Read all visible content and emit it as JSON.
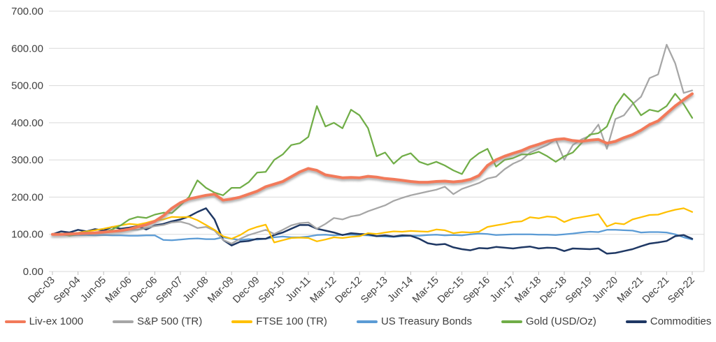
{
  "chart_data": {
    "type": "line",
    "title": "",
    "xlabel": "",
    "ylabel": "",
    "x_frequency": "quarterly",
    "points_per_label": 3,
    "x_tick_labels": [
      "Dec-03",
      "Sep-04",
      "Jun-05",
      "Mar-06",
      "Dec-06",
      "Sep-07",
      "Jun-08",
      "Mar-09",
      "Dec-09",
      "Sep-10",
      "Jun-11",
      "Mar-12",
      "Dec-12",
      "Sep-13",
      "Jun-14",
      "Mar-15",
      "Dec-15",
      "Sep-16",
      "Jun-17",
      "Mar-18",
      "Dec-18",
      "Sep-19",
      "Jun-20",
      "Mar-21",
      "Dec-21",
      "Sep-22"
    ],
    "ylim": [
      0,
      700
    ],
    "y_tick_labels": [
      "0.00",
      "100.00",
      "200.00",
      "300.00",
      "400.00",
      "500.00",
      "600.00",
      "700.00"
    ],
    "grid": "horizontal",
    "grid_color": "#D9D9D9",
    "axis_text_color": "#404040",
    "legend_position": "bottom",
    "series": [
      {
        "name": "Liv-ex 1000",
        "color": "#F27A5A",
        "width": 4,
        "shadow": true,
        "values": [
          100,
          100,
          101,
          102,
          103,
          104,
          106,
          108,
          110,
          114,
          120,
          126,
          135,
          150,
          170,
          185,
          195,
          200,
          205,
          208,
          192,
          195,
          200,
          208,
          216,
          228,
          235,
          242,
          255,
          268,
          277,
          272,
          260,
          256,
          252,
          253,
          252,
          256,
          254,
          250,
          248,
          245,
          242,
          240,
          240,
          242,
          243,
          241,
          243,
          248,
          258,
          285,
          300,
          310,
          318,
          325,
          335,
          342,
          350,
          355,
          357,
          352,
          350,
          353,
          355,
          345,
          350,
          360,
          368,
          380,
          395,
          405,
          425,
          445,
          462,
          478
        ]
      },
      {
        "name": "S&P 500 (TR)",
        "color": "#A6A6A6",
        "width": 2.25,
        "shadow": false,
        "values": [
          100,
          101,
          100,
          99,
          104,
          102,
          104,
          107,
          108,
          112,
          112,
          117,
          122,
          125,
          132,
          134,
          128,
          117,
          120,
          110,
          85,
          75,
          88,
          98,
          105,
          112,
          101,
          112,
          124,
          130,
          132,
          115,
          128,
          144,
          140,
          148,
          152,
          162,
          170,
          178,
          190,
          198,
          205,
          210,
          215,
          220,
          228,
          208,
          222,
          230,
          238,
          250,
          255,
          275,
          290,
          300,
          320,
          330,
          340,
          355,
          300,
          340,
          355,
          365,
          395,
          330,
          410,
          420,
          450,
          470,
          520,
          530,
          610,
          560,
          480,
          487
        ]
      },
      {
        "name": "FTSE 100 (TR)",
        "color": "#FFC000",
        "width": 2.25,
        "shadow": false,
        "values": [
          100,
          101,
          102,
          104,
          108,
          111,
          115,
          120,
          124,
          128,
          126,
          131,
          137,
          140,
          147,
          146,
          147,
          138,
          125,
          112,
          95,
          88,
          98,
          112,
          120,
          126,
          78,
          84,
          90,
          91,
          90,
          81,
          86,
          92,
          90,
          93,
          95,
          103,
          101,
          105,
          108,
          107,
          109,
          108,
          107,
          113,
          111,
          103,
          106,
          105,
          107,
          120,
          124,
          128,
          133,
          135,
          146,
          143,
          148,
          146,
          133,
          142,
          146,
          150,
          154,
          121,
          130,
          127,
          140,
          146,
          152,
          153,
          160,
          166,
          170,
          160
        ]
      },
      {
        "name": "US Treasury Bonds",
        "color": "#5B9BD5",
        "width": 2.25,
        "shadow": false,
        "values": [
          100,
          99,
          97,
          98,
          98,
          97,
          98,
          97,
          97,
          96,
          96,
          97,
          97,
          85,
          84,
          86,
          88,
          89,
          87,
          87,
          92,
          88,
          85,
          87,
          86,
          88,
          92,
          94,
          92,
          92,
          94,
          98,
          99,
          97,
          99,
          99,
          98,
          97,
          95,
          94,
          93,
          95,
          96,
          96,
          98,
          99,
          97,
          98,
          97,
          100,
          102,
          101,
          98,
          99,
          100,
          100,
          100,
          99,
          99,
          98,
          100,
          102,
          105,
          107,
          106,
          112,
          112,
          111,
          110,
          105,
          106,
          106,
          105,
          100,
          92,
          86
        ]
      },
      {
        "name": "Gold (USD/Oz)",
        "color": "#70AD47",
        "width": 2.25,
        "shadow": false,
        "values": [
          100,
          102,
          96,
          101,
          106,
          104,
          106,
          113,
          124,
          140,
          147,
          144,
          153,
          158,
          157,
          178,
          200,
          245,
          225,
          212,
          205,
          225,
          225,
          240,
          266,
          268,
          300,
          315,
          340,
          345,
          362,
          445,
          390,
          400,
          385,
          435,
          420,
          385,
          310,
          320,
          290,
          310,
          318,
          295,
          287,
          295,
          285,
          272,
          262,
          300,
          318,
          330,
          282,
          300,
          305,
          315,
          315,
          322,
          310,
          295,
          310,
          320,
          345,
          368,
          372,
          390,
          445,
          478,
          455,
          420,
          435,
          430,
          445,
          478,
          450,
          413
        ]
      },
      {
        "name": "Commodities",
        "color": "#1F3864",
        "width": 2.5,
        "shadow": false,
        "values": [
          100,
          108,
          105,
          112,
          108,
          114,
          110,
          120,
          115,
          118,
          122,
          113,
          124,
          128,
          135,
          140,
          148,
          160,
          170,
          140,
          85,
          70,
          80,
          82,
          88,
          88,
          98,
          105,
          115,
          125,
          125,
          115,
          110,
          105,
          98,
          103,
          101,
          100,
          95,
          97,
          94,
          97,
          96,
          88,
          76,
          72,
          74,
          65,
          60,
          57,
          63,
          62,
          66,
          64,
          62,
          65,
          67,
          62,
          64,
          63,
          55,
          62,
          61,
          60,
          62,
          48,
          50,
          55,
          60,
          68,
          75,
          78,
          82,
          95,
          98,
          88
        ]
      }
    ]
  }
}
